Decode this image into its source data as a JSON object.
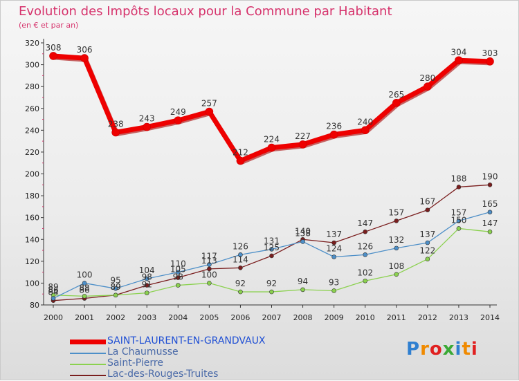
{
  "title": "Evolution des Impôts locaux pour la Commune par Habitant",
  "subtitle": "(en € et par an)",
  "brand": {
    "letters": [
      "P",
      "r",
      "o",
      "x",
      "i",
      "t",
      "i"
    ],
    "colors": [
      "#2f7fd0",
      "#f08a00",
      "#e02020",
      "#3aa935",
      "#2f7fd0",
      "#f08a00",
      "#e02020"
    ]
  },
  "chart_data": {
    "type": "line",
    "title": "Evolution des Impôts locaux pour la Commune par Habitant",
    "subtitle": "(en € et par an)",
    "xlabel": "",
    "ylabel": "",
    "x": [
      2000,
      2001,
      2002,
      2003,
      2004,
      2005,
      2006,
      2007,
      2008,
      2009,
      2010,
      2011,
      2012,
      2013,
      2014
    ],
    "ylim": [
      80,
      320
    ],
    "yticks": [
      80,
      100,
      120,
      140,
      160,
      180,
      200,
      220,
      240,
      260,
      280,
      300,
      320
    ],
    "grid": false,
    "legend_position": "bottom-left",
    "series": [
      {
        "name": "SAINT-LAURENT-EN-GRANDVAUX",
        "color": "#ee0000",
        "width": 7,
        "values": [
          308,
          306,
          238,
          243,
          249,
          257,
          212,
          224,
          227,
          236,
          240,
          265,
          280,
          304,
          303
        ]
      },
      {
        "name": "La Chaumusse",
        "color": "#4d8fc8",
        "width": 1.3,
        "values": [
          86,
          100,
          95,
          104,
          110,
          117,
          126,
          131,
          138,
          124,
          126,
          132,
          137,
          157,
          165
        ]
      },
      {
        "name": "Saint-Pierre",
        "color": "#8bd14f",
        "width": 1.3,
        "values": [
          89,
          88,
          89,
          91,
          98,
          100,
          92,
          92,
          94,
          93,
          102,
          108,
          122,
          150,
          147
        ]
      },
      {
        "name": "Lac-des-Rouges-Truites",
        "color": "#7a1e1e",
        "width": 1.3,
        "values": [
          84,
          86,
          89,
          98,
          105,
          113,
          114,
          125,
          140,
          137,
          147,
          157,
          167,
          188,
          190
        ]
      }
    ]
  }
}
